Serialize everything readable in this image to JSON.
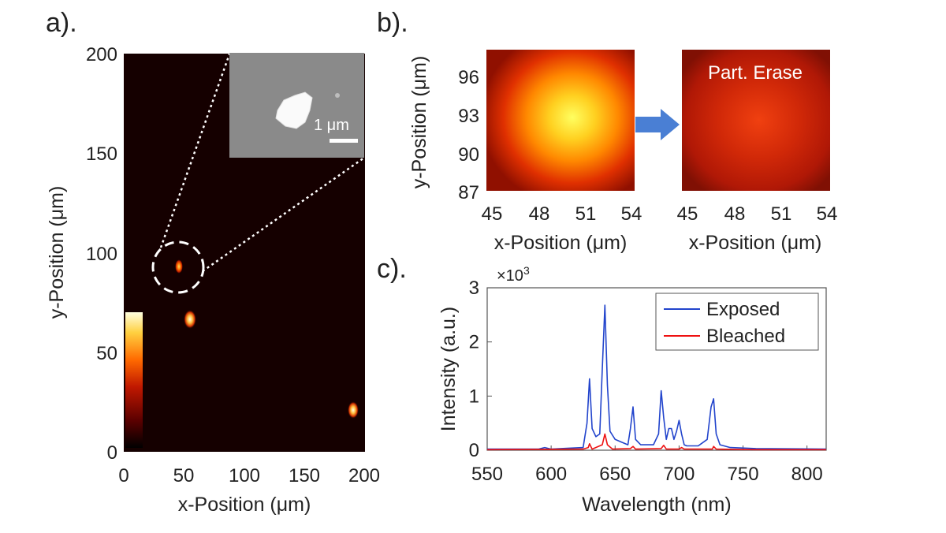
{
  "panels": {
    "a": {
      "label": "a).",
      "xlabel": "x-Position (μm)",
      "ylabel": "y-Position (μm)",
      "xticks": [
        "0",
        "50",
        "100",
        "150",
        "200"
      ],
      "yticks": [
        "0",
        "50",
        "100",
        "150",
        "200"
      ],
      "inset_scale": "1 μm",
      "colormap": [
        "#000000",
        "#5a0000",
        "#c01800",
        "#ff6a00",
        "#ffd040",
        "#ffffe0"
      ]
    },
    "b": {
      "label": "b).",
      "ylabel": "y-Position (μm)",
      "xlabel_left": "x-Position (μm)",
      "xlabel_right": "x-Position (μm)",
      "xticks": [
        "45",
        "48",
        "51",
        "54"
      ],
      "yticks": [
        "96",
        "93",
        "90",
        "87"
      ],
      "right_title": "Part. Erase"
    },
    "c": {
      "label": "c).",
      "multiplier": "×10",
      "multiplier_exp": "3"
    }
  },
  "chart_data": [
    {
      "type": "heatmap",
      "panel": "a",
      "xlabel": "x-Position (μm)",
      "ylabel": "y-Position (μm)",
      "xlim": [
        0,
        200
      ],
      "ylim": [
        0,
        200
      ],
      "spots": [
        {
          "x": 47,
          "y": 92,
          "intensity": 0.7
        },
        {
          "x": 55,
          "y": 66,
          "intensity": 1.0
        },
        {
          "x": 192,
          "y": 20,
          "intensity": 1.0
        }
      ],
      "colorbar": "black-red-yellow"
    },
    {
      "type": "heatmap",
      "panel": "b-left",
      "xlabel": "x-Position (μm)",
      "ylabel": "y-Position (μm)",
      "xlim": [
        45,
        54
      ],
      "ylim": [
        87,
        98
      ],
      "peak": {
        "x": 50,
        "y": 92.5,
        "intensity": 1.0
      }
    },
    {
      "type": "heatmap",
      "panel": "b-right",
      "title": "Part. Erase",
      "xlabel": "x-Position (μm)",
      "xlim": [
        45,
        54
      ],
      "ylim": [
        87,
        98
      ],
      "peak": {
        "x": 50,
        "y": 92.5,
        "intensity": 0.45
      }
    },
    {
      "type": "line",
      "panel": "c",
      "xlabel": "Wavelength (nm)",
      "ylabel": "Intensity (a.u.)",
      "xlim": [
        550,
        815
      ],
      "ylim": [
        0,
        3
      ],
      "y_multiplier": "×10^3",
      "xticks": [
        550,
        600,
        650,
        700,
        750,
        800
      ],
      "yticks": [
        0,
        1,
        2,
        3
      ],
      "legend": "top-right",
      "series": [
        {
          "name": "Exposed",
          "color": "#2244cc",
          "x": [
            550,
            590,
            595,
            600,
            625,
            628,
            630,
            632,
            635,
            638,
            640,
            642,
            644,
            646,
            650,
            655,
            660,
            662,
            664,
            666,
            670,
            680,
            684,
            686,
            688,
            690,
            692,
            694,
            696,
            698,
            700,
            702,
            704,
            706,
            715,
            722,
            725,
            727,
            729,
            732,
            740,
            760,
            815
          ],
          "y": [
            0.02,
            0.02,
            0.05,
            0.02,
            0.05,
            0.5,
            1.32,
            0.4,
            0.25,
            0.3,
            1.5,
            2.68,
            1.2,
            0.35,
            0.2,
            0.15,
            0.1,
            0.4,
            0.8,
            0.2,
            0.1,
            0.1,
            0.3,
            1.1,
            0.6,
            0.2,
            0.4,
            0.4,
            0.2,
            0.35,
            0.55,
            0.3,
            0.1,
            0.08,
            0.08,
            0.2,
            0.8,
            0.95,
            0.3,
            0.1,
            0.05,
            0.03,
            0.02
          ]
        },
        {
          "name": "Bleached",
          "color": "#ee1111",
          "x": [
            550,
            625,
            629,
            630,
            632,
            640,
            642,
            644,
            648,
            662,
            664,
            666,
            686,
            688,
            690,
            700,
            702,
            704,
            726,
            727,
            729,
            760,
            815
          ],
          "y": [
            0.01,
            0.02,
            0.05,
            0.12,
            0.02,
            0.1,
            0.3,
            0.1,
            0.02,
            0.03,
            0.07,
            0.02,
            0.03,
            0.09,
            0.02,
            0.02,
            0.05,
            0.02,
            0.02,
            0.07,
            0.02,
            0.01,
            0.01
          ]
        }
      ]
    }
  ]
}
